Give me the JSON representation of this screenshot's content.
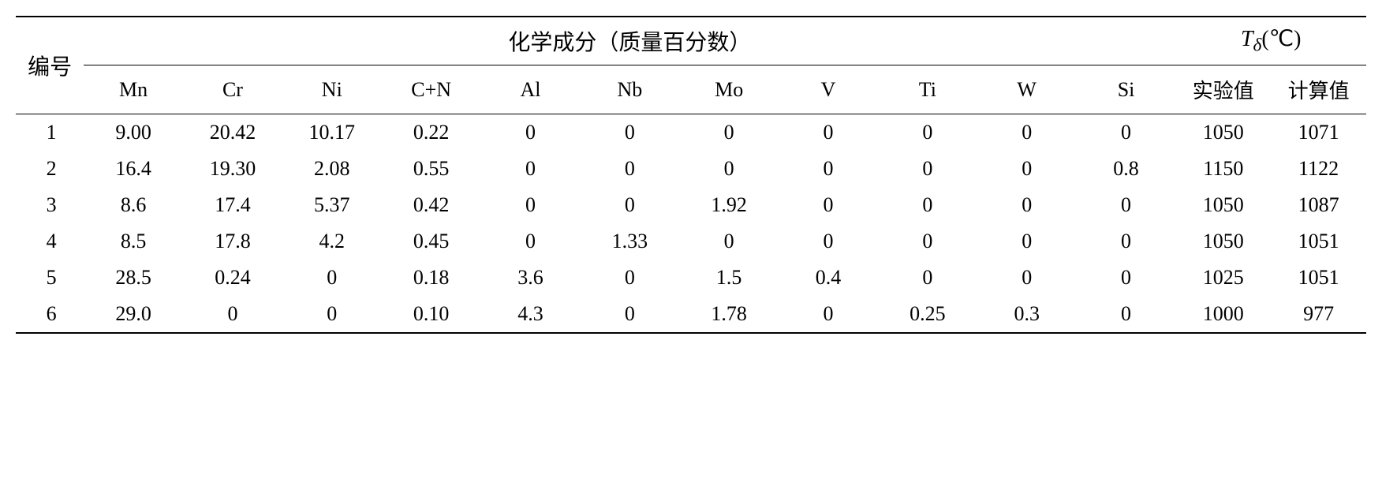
{
  "table": {
    "row_label": "编号",
    "group_headers": {
      "composition": "化学成分（质量百分数）",
      "temperature_html": "<span class='italic'>T<sub>δ</sub></span>(℃)"
    },
    "composition_columns": [
      "Mn",
      "Cr",
      "Ni",
      "C+N",
      "Al",
      "Nb",
      "Mo",
      "V",
      "Ti",
      "W",
      "Si"
    ],
    "temperature_columns": [
      "实验值",
      "计算值"
    ],
    "rows": [
      {
        "num": "1",
        "cells": [
          "9.00",
          "20.42",
          "10.17",
          "0.22",
          "0",
          "0",
          "0",
          "0",
          "0",
          "0",
          "0",
          "1050",
          "1071"
        ]
      },
      {
        "num": "2",
        "cells": [
          "16.4",
          "19.30",
          "2.08",
          "0.55",
          "0",
          "0",
          "0",
          "0",
          "0",
          "0",
          "0.8",
          "1150",
          "1122"
        ]
      },
      {
        "num": "3",
        "cells": [
          "8.6",
          "17.4",
          "5.37",
          "0.42",
          "0",
          "0",
          "1.92",
          "0",
          "0",
          "0",
          "0",
          "1050",
          "1087"
        ]
      },
      {
        "num": "4",
        "cells": [
          "8.5",
          "17.8",
          "4.2",
          "0.45",
          "0",
          "1.33",
          "0",
          "0",
          "0",
          "0",
          "0",
          "1050",
          "1051"
        ]
      },
      {
        "num": "5",
        "cells": [
          "28.5",
          "0.24",
          "0",
          "0.18",
          "3.6",
          "0",
          "1.5",
          "0.4",
          "0",
          "0",
          "0",
          "1025",
          "1051"
        ]
      },
      {
        "num": "6",
        "cells": [
          "29.0",
          "0",
          "0",
          "0.10",
          "4.3",
          "0",
          "1.78",
          "0",
          "0.25",
          "0.3",
          "0",
          "1000",
          "977"
        ]
      }
    ],
    "column_widths": [
      "5%",
      "7.3%",
      "7.3%",
      "7.3%",
      "7.3%",
      "7.3%",
      "7.3%",
      "7.3%",
      "7.3%",
      "7.3%",
      "7.3%",
      "7.3%",
      "7%",
      "7%"
    ]
  },
  "style": {
    "font_size_header": 28,
    "font_size_cell": 26,
    "border_color": "#000000",
    "background_color": "#ffffff",
    "text_color": "#000000"
  }
}
